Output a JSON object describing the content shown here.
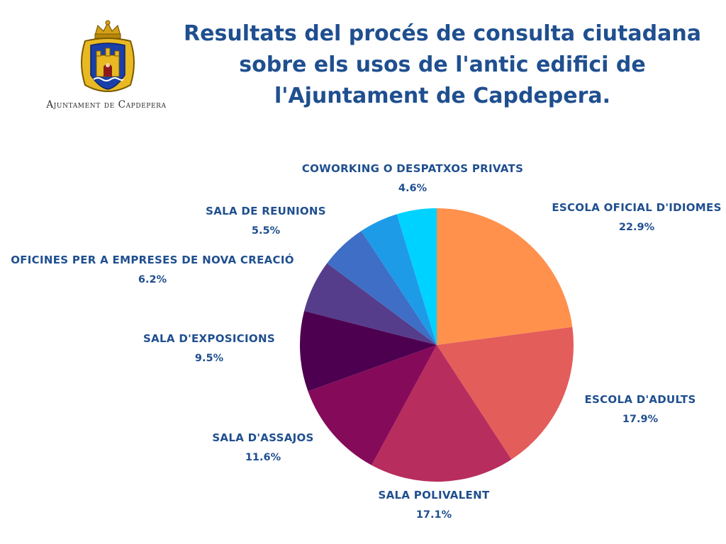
{
  "logo": {
    "text": "Ajuntament de Capdepera",
    "icon": "coat-of-arms-icon"
  },
  "title": "Resultats del procés de consulta ciutadana\nsobre els usos de l'antic edifici de\nl'Ajuntament de Capdepera.",
  "chart_data": {
    "type": "pie",
    "title": "Resultats del procés de consulta ciutadana sobre els usos de l'antic edifici de l'Ajuntament de Capdepera.",
    "start": "12 o'clock",
    "direction": "clockwise",
    "slices": [
      {
        "label": "ESCOLA OFICIAL D'IDIOMES",
        "value": 22.9,
        "display": "22.9%",
        "color": "#ff914d"
      },
      {
        "label": "ESCOLA D'ADULTS",
        "value": 17.9,
        "display": "17.9%",
        "color": "#e35d5b"
      },
      {
        "label": "SALA POLIVALENT",
        "value": 17.1,
        "display": "17.1%",
        "color": "#b72d5d"
      },
      {
        "label": "SALA D'ASSAJOS",
        "value": 11.6,
        "display": "11.6%",
        "color": "#850a5a"
      },
      {
        "label": "SALA D'EXPOSICIONS",
        "value": 9.5,
        "display": "9.5%",
        "color": "#4d0050"
      },
      {
        "label": "OFICINES PER A EMPRESES DE NOVA CREACIÓ",
        "value": 6.2,
        "display": "6.2%",
        "color": "#563d8c"
      },
      {
        "label": "SALA DE REUNIONS",
        "value": 5.5,
        "display": "5.5%",
        "color": "#3f6ec6"
      },
      {
        "label": "COWORKING O DESPATXOS PRIVATS",
        "value": 4.6,
        "display": "4.6%",
        "color": "#1e9be6"
      },
      {
        "label": "",
        "value": 4.7,
        "display": "",
        "color": "#00d2ff"
      }
    ],
    "label_color": "#1f4f8f",
    "legend": "none"
  }
}
